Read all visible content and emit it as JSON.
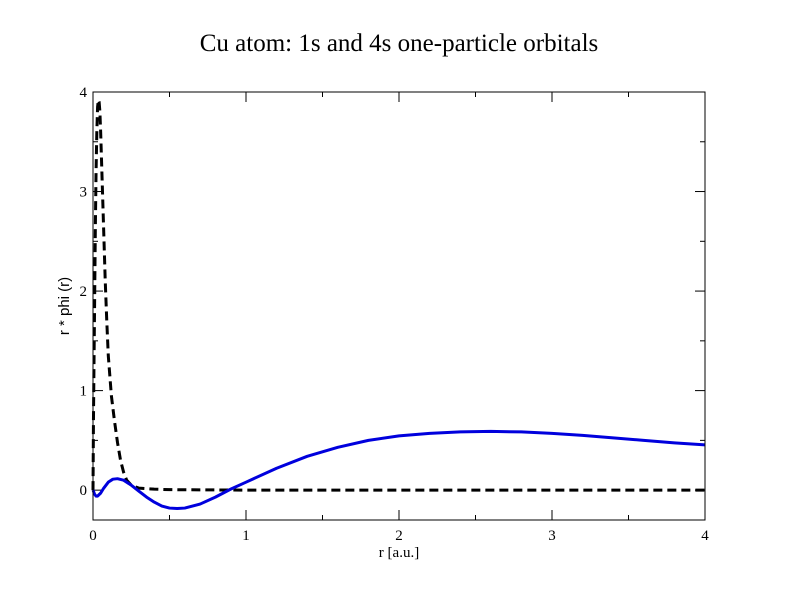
{
  "chart_data": {
    "type": "line",
    "title": "Cu atom: 1s and 4s one-particle orbitals",
    "xlabel": "r [a.u.]",
    "ylabel": "r * phi (r)",
    "xlim": [
      0,
      4
    ],
    "ylim": [
      -0.3,
      4
    ],
    "xticks": [
      0,
      1,
      2,
      3,
      4
    ],
    "yticks": [
      0,
      1,
      2,
      3,
      4
    ],
    "xtick_labels": [
      "0",
      "1",
      "2",
      "3",
      "4"
    ],
    "ytick_labels": [
      "0",
      "1",
      "2",
      "3",
      "4"
    ],
    "x_minor_step": 0.5,
    "y_minor_step": 0.5,
    "grid": false,
    "legend": "none",
    "series": [
      {
        "line_style": "dashed",
        "color": "#000000",
        "points": [
          [
            0,
            0
          ],
          [
            0.003,
            0.7
          ],
          [
            0.006,
            1.2
          ],
          [
            0.01,
            1.8
          ],
          [
            0.015,
            2.6
          ],
          [
            0.02,
            3.2
          ],
          [
            0.025,
            3.6
          ],
          [
            0.03,
            3.85
          ],
          [
            0.035,
            3.92
          ],
          [
            0.04,
            3.9
          ],
          [
            0.045,
            3.8
          ],
          [
            0.05,
            3.6
          ],
          [
            0.06,
            3.1
          ],
          [
            0.07,
            2.6
          ],
          [
            0.08,
            2.1
          ],
          [
            0.09,
            1.7
          ],
          [
            0.1,
            1.35
          ],
          [
            0.11,
            1.15
          ],
          [
            0.12,
            0.95
          ],
          [
            0.14,
            0.7
          ],
          [
            0.16,
            0.48
          ],
          [
            0.18,
            0.3
          ],
          [
            0.2,
            0.18
          ],
          [
            0.22,
            0.1
          ],
          [
            0.25,
            0.05
          ],
          [
            0.3,
            0.02
          ],
          [
            0.4,
            0.01
          ],
          [
            0.5,
            0.005
          ],
          [
            1,
            0
          ],
          [
            2,
            0
          ],
          [
            3,
            0
          ],
          [
            4,
            0
          ]
        ]
      },
      {
        "line_style": "solid",
        "color": "#0000dd",
        "points": [
          [
            0,
            0
          ],
          [
            0.003,
            -0.01
          ],
          [
            0.01,
            -0.04
          ],
          [
            0.02,
            -0.06
          ],
          [
            0.03,
            -0.06
          ],
          [
            0.05,
            -0.03
          ],
          [
            0.07,
            0.02
          ],
          [
            0.1,
            0.08
          ],
          [
            0.13,
            0.11
          ],
          [
            0.16,
            0.115
          ],
          [
            0.2,
            0.1
          ],
          [
            0.25,
            0.05
          ],
          [
            0.3,
            -0.01
          ],
          [
            0.35,
            -0.07
          ],
          [
            0.4,
            -0.12
          ],
          [
            0.45,
            -0.16
          ],
          [
            0.5,
            -0.18
          ],
          [
            0.55,
            -0.185
          ],
          [
            0.6,
            -0.18
          ],
          [
            0.7,
            -0.14
          ],
          [
            0.8,
            -0.07
          ],
          [
            0.9,
            0.01
          ],
          [
            1.0,
            0.08
          ],
          [
            1.2,
            0.22
          ],
          [
            1.4,
            0.34
          ],
          [
            1.6,
            0.43
          ],
          [
            1.8,
            0.5
          ],
          [
            2.0,
            0.545
          ],
          [
            2.2,
            0.57
          ],
          [
            2.4,
            0.585
          ],
          [
            2.6,
            0.59
          ],
          [
            2.8,
            0.585
          ],
          [
            3.0,
            0.57
          ],
          [
            3.2,
            0.55
          ],
          [
            3.4,
            0.525
          ],
          [
            3.6,
            0.5
          ],
          [
            3.8,
            0.475
          ],
          [
            4.0,
            0.455
          ]
        ]
      }
    ]
  }
}
